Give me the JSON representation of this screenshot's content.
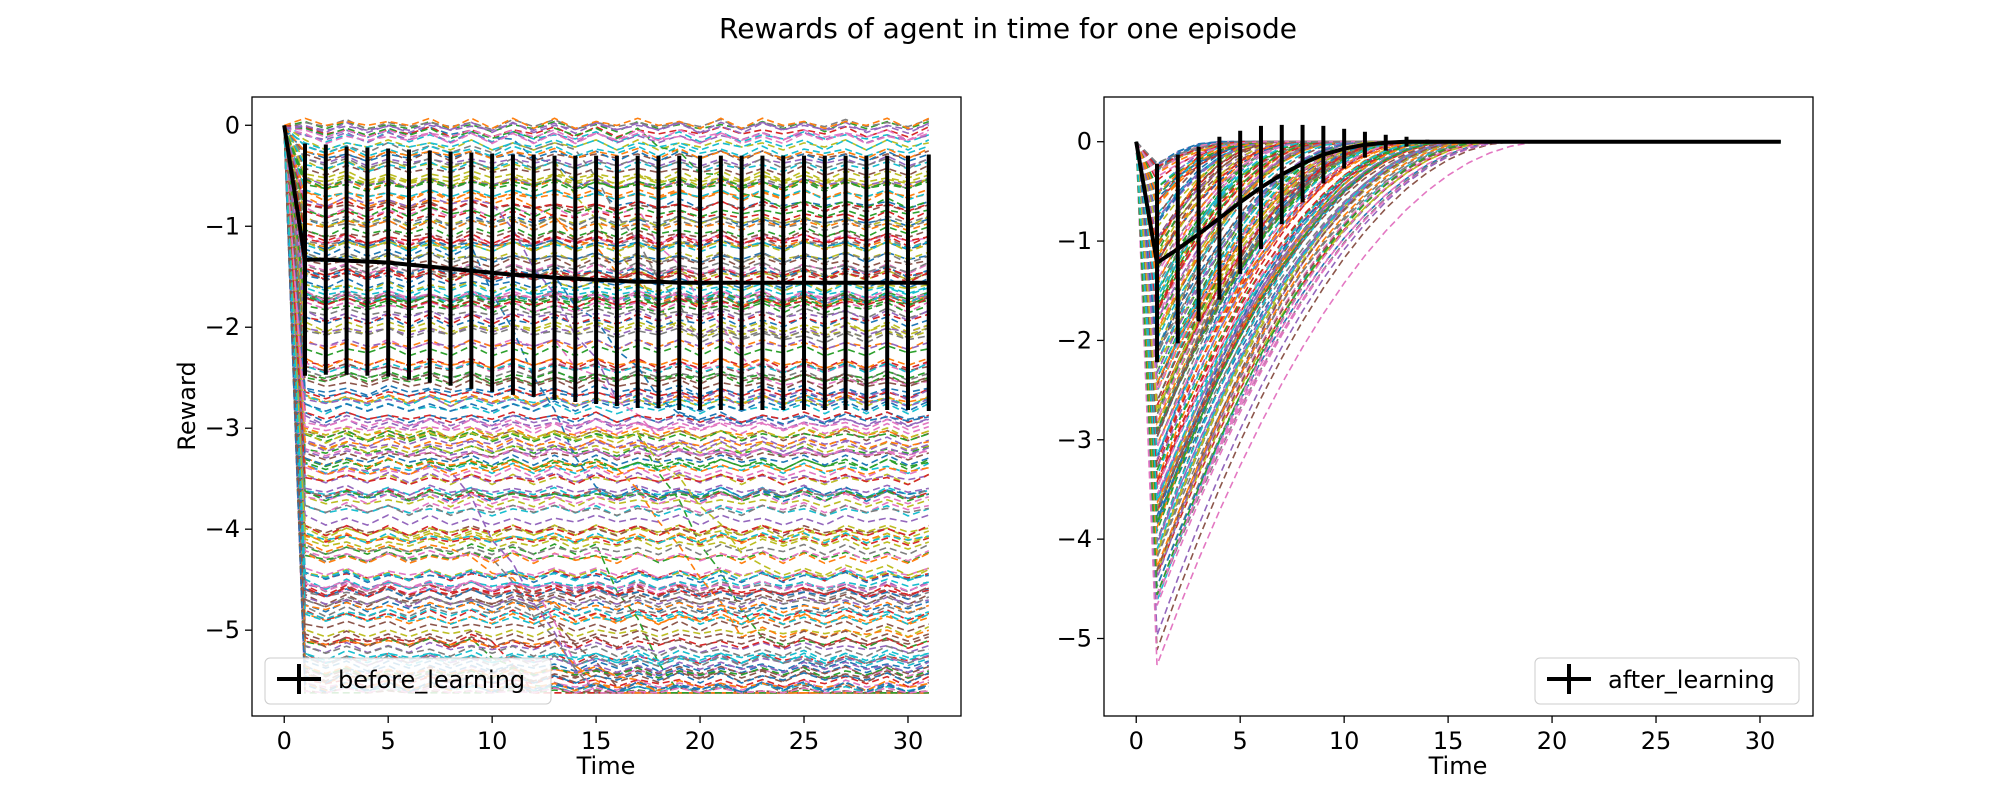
{
  "figure": {
    "suptitle": "Rewards of agent in time for one episode"
  },
  "chart_data": [
    {
      "type": "line",
      "panel": "left",
      "xlabel": "Time",
      "ylabel": "Reward",
      "xlim": [
        -1.55,
        32.55
      ],
      "ylim": [
        -5.85,
        0.28
      ],
      "xticks": [
        0,
        5,
        10,
        15,
        20,
        25,
        30
      ],
      "yticks": [
        0,
        -1,
        -2,
        -3,
        -4,
        -5
      ],
      "legend": {
        "label": "before_learning",
        "location": "lower-left"
      },
      "mean_series": {
        "name": "before_learning",
        "x": [
          0,
          1,
          2,
          3,
          4,
          5,
          6,
          7,
          8,
          9,
          10,
          11,
          12,
          13,
          14,
          15,
          16,
          17,
          18,
          19,
          20,
          21,
          22,
          23,
          24,
          25,
          26,
          27,
          28,
          29,
          30,
          31
        ],
        "y": [
          0,
          -1.33,
          -1.33,
          -1.34,
          -1.35,
          -1.36,
          -1.38,
          -1.4,
          -1.42,
          -1.44,
          -1.46,
          -1.48,
          -1.49,
          -1.51,
          -1.52,
          -1.53,
          -1.54,
          -1.55,
          -1.55,
          -1.56,
          -1.56,
          -1.56,
          -1.56,
          -1.56,
          -1.56,
          -1.56,
          -1.56,
          -1.56,
          -1.56,
          -1.56,
          -1.56,
          -1.56
        ],
        "err": [
          0,
          1.15,
          1.14,
          1.13,
          1.13,
          1.13,
          1.14,
          1.15,
          1.16,
          1.17,
          1.18,
          1.19,
          1.2,
          1.21,
          1.22,
          1.23,
          1.24,
          1.25,
          1.25,
          1.26,
          1.26,
          1.26,
          1.26,
          1.26,
          1.26,
          1.26,
          1.26,
          1.26,
          1.26,
          1.26,
          1.26,
          1.27
        ]
      },
      "episodes_note_levels": [
        -0.02,
        -0.12,
        -0.25,
        -0.4,
        -0.55,
        -0.7,
        -0.85,
        -1.0,
        -1.15,
        -1.3,
        -1.45,
        -1.6,
        -1.75,
        -1.9,
        -2.05,
        -2.2,
        -2.35,
        -2.5,
        -2.62,
        -2.75,
        -2.88,
        -3.0,
        -3.1,
        -3.2,
        -3.32,
        -3.45,
        -3.55,
        -3.65,
        -3.78,
        -3.9,
        -4.05,
        -4.18,
        -4.3,
        -4.45,
        -4.6,
        -4.72,
        -4.85,
        -5.0,
        -5.15,
        -5.3,
        -5.45,
        -5.6
      ]
    },
    {
      "type": "line",
      "panel": "right",
      "xlabel": "Time",
      "ylabel": "",
      "xlim": [
        -1.55,
        32.55
      ],
      "ylim": [
        -5.78,
        0.45
      ],
      "xticks": [
        0,
        5,
        10,
        15,
        20,
        25,
        30
      ],
      "yticks": [
        0,
        -1,
        -2,
        -3,
        -4,
        -5
      ],
      "legend": {
        "label": "after_learning",
        "location": "lower-right"
      },
      "mean_series": {
        "name": "after_learning",
        "x": [
          0,
          1,
          2,
          3,
          4,
          5,
          6,
          7,
          8,
          9,
          10,
          11,
          12,
          13,
          14,
          15,
          16,
          17,
          18,
          19,
          20,
          21,
          22,
          23,
          24,
          25,
          26,
          27,
          28,
          29,
          30,
          31
        ],
        "y": [
          0,
          -1.22,
          -1.08,
          -0.93,
          -0.77,
          -0.61,
          -0.46,
          -0.33,
          -0.22,
          -0.13,
          -0.07,
          -0.03,
          -0.01,
          0,
          0,
          0,
          0,
          0,
          0,
          0,
          0,
          0,
          0,
          0,
          0,
          0,
          0,
          0,
          0,
          0,
          0,
          0
        ],
        "err": [
          0,
          1.0,
          0.95,
          0.88,
          0.82,
          0.72,
          0.62,
          0.5,
          0.39,
          0.29,
          0.2,
          0.13,
          0.08,
          0.05,
          0.02,
          0,
          0,
          0,
          0,
          0,
          0,
          0,
          0,
          0,
          0,
          0,
          0,
          0,
          0,
          0,
          0,
          0
        ]
      },
      "episodes_note_levels": [
        -0.1,
        -0.3,
        -0.5,
        -0.7,
        -0.9,
        -1.1,
        -1.3,
        -1.5,
        -1.7,
        -1.9,
        -2.1,
        -2.3,
        -2.5,
        -2.7,
        -2.9,
        -3.1,
        -3.3,
        -3.5,
        -3.7,
        -3.9,
        -4.1,
        -4.3,
        -4.5,
        -4.7,
        -4.9,
        -5.1,
        -5.3,
        -5.5
      ]
    }
  ],
  "colors": {
    "palette": [
      "#1f77b4",
      "#ff7f0e",
      "#2ca02c",
      "#d62728",
      "#9467bd",
      "#8c564b",
      "#e377c2",
      "#7f7f7f",
      "#bcbd22",
      "#17becf"
    ],
    "mean": "#000000"
  }
}
